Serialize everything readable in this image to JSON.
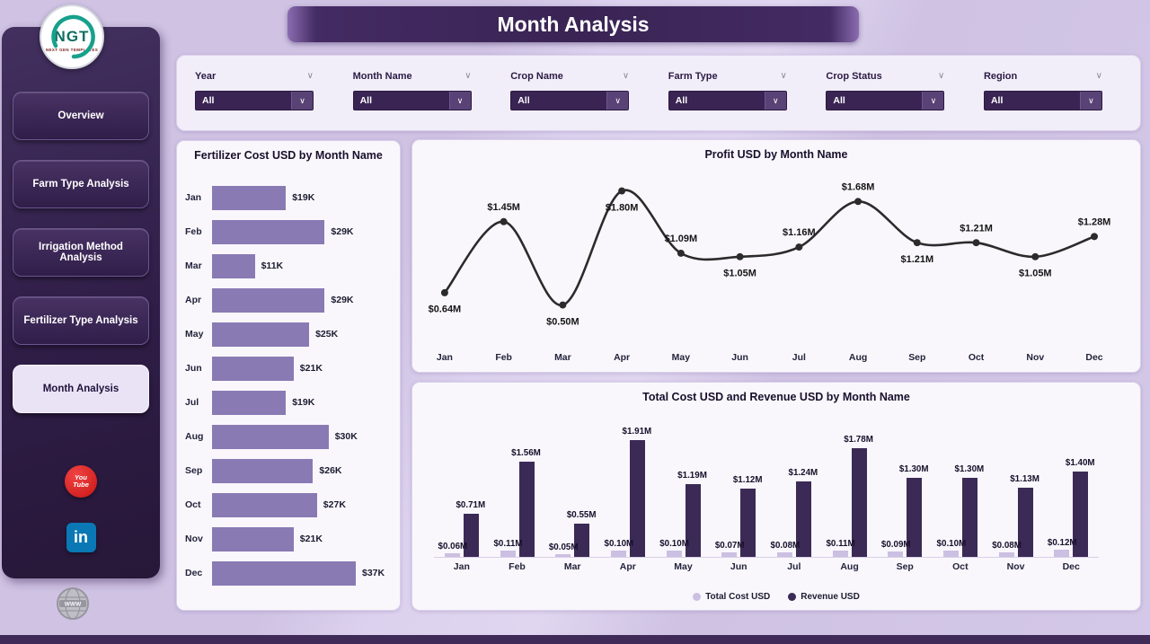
{
  "app": {
    "title": "Month Analysis"
  },
  "sidebar": {
    "logo": {
      "text": "NGT",
      "subtext": "NEXT GEN TEMPLATES"
    },
    "items": [
      {
        "label": "Overview",
        "active": false
      },
      {
        "label": "Farm Type Analysis",
        "active": false
      },
      {
        "label": "Irrigation Method Analysis",
        "active": false
      },
      {
        "label": "Fertilizer Type Analysis",
        "active": false
      },
      {
        "label": "Month Analysis",
        "active": true
      }
    ],
    "social": [
      "youtube",
      "linkedin",
      "web"
    ]
  },
  "filters": [
    {
      "label": "Year",
      "value": "All"
    },
    {
      "label": "Month Name",
      "value": "All"
    },
    {
      "label": "Crop Name",
      "value": "All"
    },
    {
      "label": "Farm Type",
      "value": "All"
    },
    {
      "label": "Crop Status",
      "value": "All"
    },
    {
      "label": "Region",
      "value": "All"
    }
  ],
  "colors": {
    "sidebar": "#34224e",
    "banner": "#3a2454",
    "bar_purple": "#897ab4",
    "line": "#2b2b2b",
    "cost": "#cbbfe2",
    "revenue": "#3b2a55",
    "background": "#cfc2e3"
  },
  "chart_data": [
    {
      "type": "bar",
      "orientation": "horizontal",
      "title": "Fertilizer Cost USD by Month Name",
      "categories": [
        "Jan",
        "Feb",
        "Mar",
        "Apr",
        "May",
        "Jun",
        "Jul",
        "Aug",
        "Sep",
        "Oct",
        "Nov",
        "Dec"
      ],
      "values_k": [
        19,
        29,
        11,
        29,
        25,
        21,
        19,
        30,
        26,
        27,
        21,
        37
      ],
      "labels": [
        "$19K",
        "$29K",
        "$11K",
        "$29K",
        "$25K",
        "$21K",
        "$19K",
        "$30K",
        "$26K",
        "$27K",
        "$21K",
        "$37K"
      ],
      "xlabel": "Fertilizer Cost USD",
      "ylabel": "Month Name",
      "xlim": [
        0,
        40
      ],
      "grid": false
    },
    {
      "type": "line",
      "title": "Profit USD by Month Name",
      "categories": [
        "Jan",
        "Feb",
        "Mar",
        "Apr",
        "May",
        "Jun",
        "Jul",
        "Aug",
        "Sep",
        "Oct",
        "Nov",
        "Dec"
      ],
      "values_m": [
        0.64,
        1.45,
        0.5,
        1.8,
        1.09,
        1.05,
        1.16,
        1.68,
        1.21,
        1.21,
        1.05,
        1.28
      ],
      "labels": [
        "$0.64M",
        "$1.45M",
        "$0.50M",
        "$1.80M",
        "$1.09M",
        "$1.05M",
        "$1.16M",
        "$1.68M",
        "$1.21M",
        "$1.21M",
        "$1.05M",
        "$1.28M"
      ],
      "xlabel": "Month Name",
      "ylabel": "Profit USD",
      "ylim": [
        0.4,
        1.9
      ],
      "grid": false
    },
    {
      "type": "bar",
      "title": "Total Cost USD and Revenue USD by Month Name",
      "categories": [
        "Jan",
        "Feb",
        "Mar",
        "Apr",
        "May",
        "Jun",
        "Jul",
        "Aug",
        "Sep",
        "Oct",
        "Nov",
        "Dec"
      ],
      "series": [
        {
          "name": "Total Cost USD",
          "color": "#cbbfe2",
          "values_m": [
            0.06,
            0.11,
            0.05,
            0.1,
            0.1,
            0.07,
            0.08,
            0.11,
            0.09,
            0.1,
            0.08,
            0.12
          ],
          "labels": [
            "$0.06M",
            "$0.11M",
            "$0.05M",
            "$0.10M",
            "$0.10M",
            "$0.07M",
            "$0.08M",
            "$0.11M",
            "$0.09M",
            "$0.10M",
            "$0.08M",
            "$0.12M"
          ]
        },
        {
          "name": "Revenue USD",
          "color": "#3b2a55",
          "values_m": [
            0.71,
            1.56,
            0.55,
            1.91,
            1.19,
            1.12,
            1.24,
            1.78,
            1.3,
            1.3,
            1.13,
            1.4
          ],
          "labels": [
            "$0.71M",
            "$1.56M",
            "$0.55M",
            "$1.91M",
            "$1.19M",
            "$1.12M",
            "$1.24M",
            "$1.78M",
            "$1.30M",
            "$1.30M",
            "$1.13M",
            "$1.40M"
          ]
        }
      ],
      "legend_position": "bottom",
      "ylim": [
        0,
        2.0
      ],
      "grid": false
    }
  ]
}
